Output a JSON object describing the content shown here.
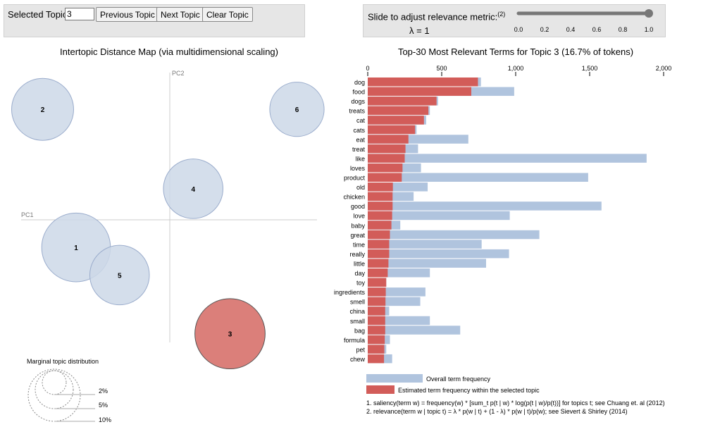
{
  "topic_controls": {
    "label": "Selected Topic:",
    "value": "3",
    "prev_label": "Previous Topic",
    "next_label": "Next Topic",
    "clear_label": "Clear Topic"
  },
  "lambda_controls": {
    "label": "Slide to adjust relevance metric:",
    "footnote": "(2)",
    "value_text": "λ = 1",
    "value": 1.0,
    "ticks": [
      "0.0",
      "0.2",
      "0.4",
      "0.6",
      "0.8",
      "1.0"
    ]
  },
  "left_panel": {
    "title": "Intertopic Distance Map (via multidimensional scaling)",
    "pc1_label": "PC1",
    "pc2_label": "PC2",
    "marginal_title": "Marginal topic distribution",
    "marginal_labels": [
      "2%",
      "5%",
      "10%"
    ]
  },
  "right_panel": {
    "title": "Top-30 Most Relevant Terms for Topic 3 (16.7% of tokens)",
    "legend_overall": "Overall term frequency",
    "legend_estimated": "Estimated term frequency within the selected topic",
    "footnote1": "1. saliency(term w) = frequency(w) * [sum_t p(t | w) * log(p(t | w)/p(t))] for topics t; see Chuang et. al (2012)",
    "footnote2": "2. relevance(term w | topic t) = λ * p(w | t) + (1 - λ) * p(w | t)/p(w); see Sievert & Shirley (2014)"
  },
  "chart_data": [
    {
      "type": "scatter",
      "title": "Intertopic Distance Map (via multidimensional scaling)",
      "xlabel": "PC1",
      "ylabel": "PC2",
      "selected": "3",
      "topics": [
        {
          "id": "1",
          "pc1": -0.14,
          "pc2": -0.04,
          "size_pct": 16.0
        },
        {
          "id": "2",
          "pc1": -0.19,
          "pc2": 0.16,
          "size_pct": 13.0
        },
        {
          "id": "3",
          "pc1": 0.09,
          "pc2": -0.165,
          "size_pct": 16.7
        },
        {
          "id": "4",
          "pc1": 0.035,
          "pc2": 0.045,
          "size_pct": 12.0
        },
        {
          "id": "5",
          "pc1": -0.075,
          "pc2": -0.08,
          "size_pct": 12.0
        },
        {
          "id": "6",
          "pc1": 0.19,
          "pc2": 0.16,
          "size_pct": 10.0
        }
      ]
    },
    {
      "type": "bar",
      "orientation": "horizontal",
      "title": "Top-30 Most Relevant Terms for Topic 3 (16.7% of tokens)",
      "xlim": [
        0,
        2000
      ],
      "ticks": [
        "0",
        "500",
        "1,000",
        "1,500",
        "2,000"
      ],
      "tick_values": [
        0,
        500,
        1000,
        1500,
        2000
      ],
      "categories": [
        "dog",
        "food",
        "dogs",
        "treats",
        "cat",
        "cats",
        "eat",
        "treat",
        "like",
        "loves",
        "product",
        "old",
        "chicken",
        "good",
        "love",
        "baby",
        "great",
        "time",
        "really",
        "little",
        "day",
        "toy",
        "ingredients",
        "smell",
        "china",
        "small",
        "bag",
        "formula",
        "pet",
        "chew"
      ],
      "series": [
        {
          "name": "Overall term frequency",
          "values": [
            765,
            990,
            475,
            420,
            395,
            330,
            680,
            340,
            1885,
            360,
            1490,
            405,
            310,
            1580,
            960,
            220,
            1160,
            770,
            955,
            800,
            420,
            125,
            390,
            355,
            145,
            420,
            625,
            150,
            125,
            165
          ]
        },
        {
          "name": "Estimated term frequency within the selected topic",
          "values": [
            745,
            700,
            465,
            410,
            380,
            320,
            275,
            255,
            250,
            235,
            230,
            170,
            168,
            168,
            165,
            160,
            150,
            145,
            145,
            140,
            135,
            125,
            122,
            120,
            118,
            118,
            118,
            115,
            112,
            110
          ]
        }
      ]
    }
  ],
  "colors": {
    "overall": "#b0c4de",
    "selected": "#d25c59",
    "bubble_fill": "#cdd8e8",
    "bubble_stroke": "#9aaccc",
    "selected_bubble": "#db7f7a",
    "selected_bubble_stroke": "#555555"
  }
}
